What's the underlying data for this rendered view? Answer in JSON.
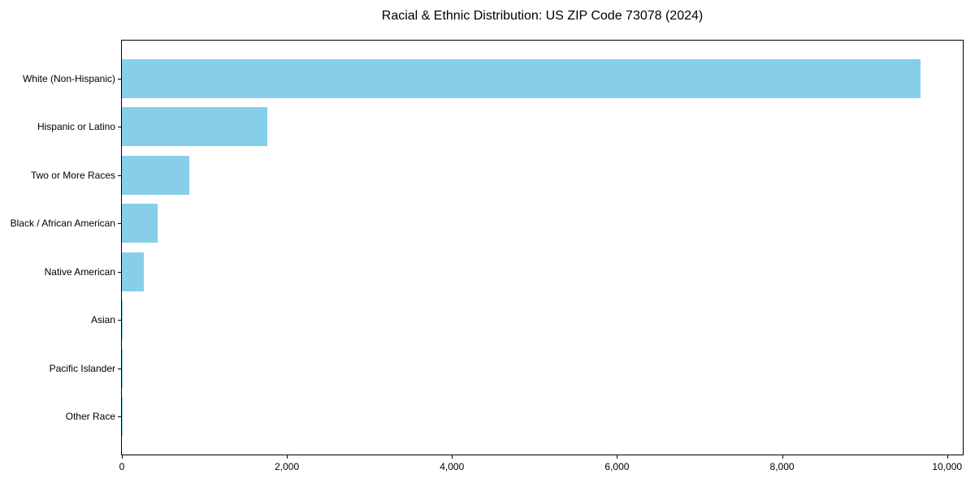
{
  "chart_data": {
    "type": "bar",
    "orientation": "horizontal",
    "title": "Racial & Ethnic Distribution: US ZIP Code 73078 (2024)",
    "categories": [
      "White (Non-Hispanic)",
      "Hispanic or Latino",
      "Two or More Races",
      "Black / African American",
      "Native American",
      "Asian",
      "Pacific Islander",
      "Other Race"
    ],
    "values": [
      9680,
      1760,
      820,
      435,
      265,
      12,
      3,
      2
    ],
    "bar_color": "#87CEEB",
    "axis_color": "#000000",
    "text_color": "#000000",
    "xlabel": "",
    "ylabel": "",
    "xlim": [
      0,
      10190
    ],
    "xticks": [
      0,
      2000,
      4000,
      6000,
      8000,
      10000
    ],
    "xtick_labels": [
      "0",
      "2,000",
      "4,000",
      "6,000",
      "8,000",
      "10,000"
    ],
    "grid": false,
    "legend": null,
    "plot_background": "#ffffff"
  }
}
